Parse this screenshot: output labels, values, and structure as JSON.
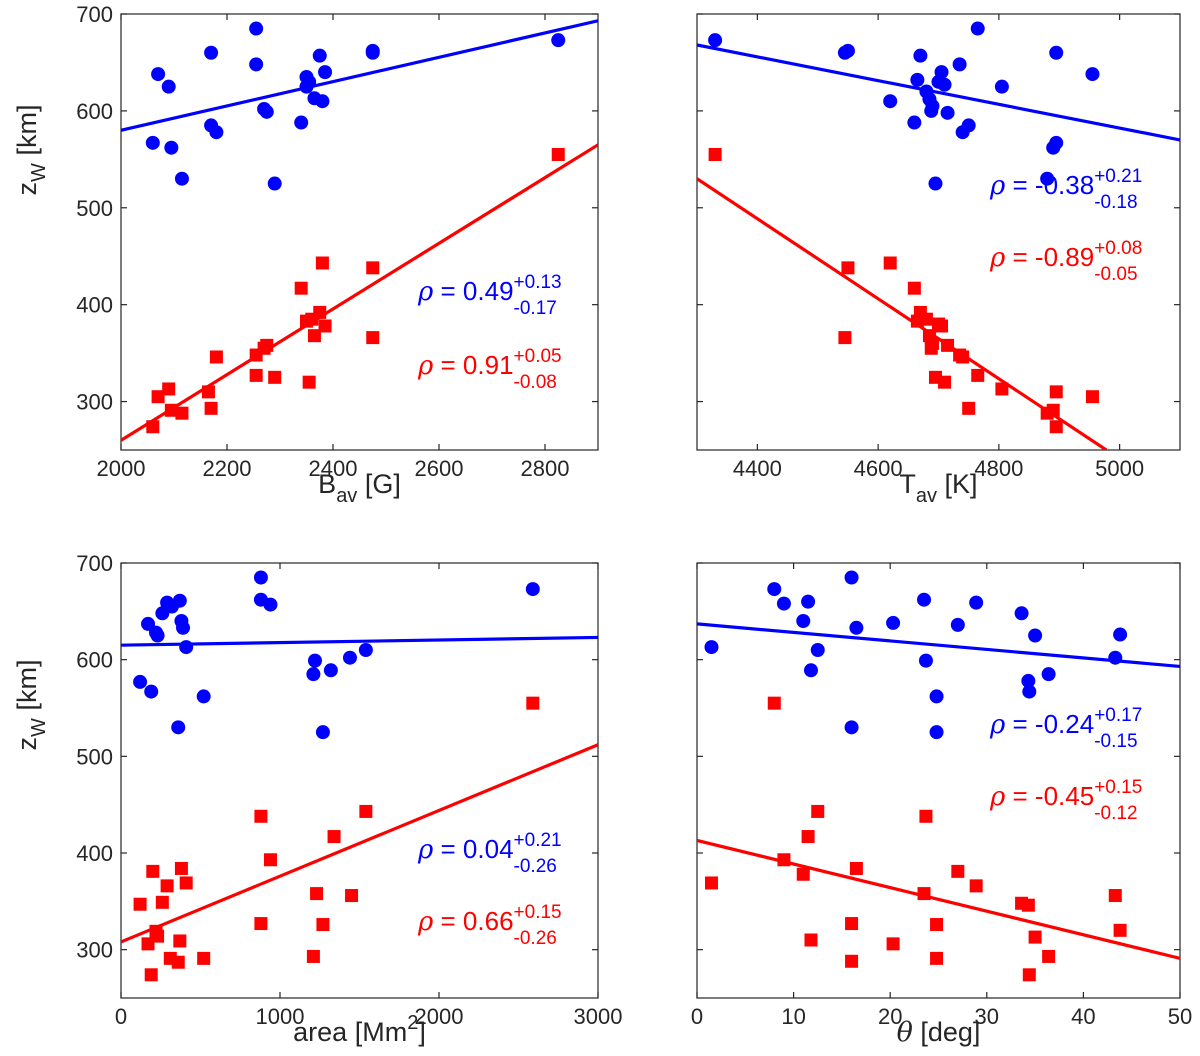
{
  "colors": {
    "blue": "#0000ff",
    "red": "#ff0000",
    "axis": "#262626"
  },
  "chart_data": [
    {
      "type": "scatter",
      "panel": "top-left",
      "xlabel": "B",
      "xlabel_sub": "av",
      "xlabel_unit": " [G]",
      "ylabel": "z",
      "ylabel_sub": "W",
      "ylabel_unit": " [km]",
      "xlim": [
        2000,
        2900
      ],
      "ylim": [
        250,
        700
      ],
      "xticks": [
        2000,
        2200,
        2400,
        2600,
        2800
      ],
      "yticks": [
        300,
        400,
        500,
        600,
        700
      ],
      "show_yticklabels": true,
      "series": [
        {
          "name": "blue",
          "marker": "circle",
          "x": [
            2060,
            2070,
            2090,
            2095,
            2115,
            2170,
            2170,
            2180,
            2255,
            2255,
            2270,
            2275,
            2290,
            2340,
            2350,
            2350,
            2355,
            2365,
            2375,
            2380,
            2385,
            2475,
            2475,
            2825
          ],
          "y": [
            567,
            638,
            625,
            562,
            530,
            660,
            585,
            578,
            685,
            648,
            602,
            599,
            525,
            588,
            635,
            625,
            630,
            613,
            657,
            610,
            640,
            662,
            660,
            673
          ]
        },
        {
          "name": "red",
          "marker": "square",
          "x": [
            2060,
            2070,
            2090,
            2095,
            2115,
            2165,
            2170,
            2180,
            2255,
            2255,
            2270,
            2275,
            2290,
            2340,
            2350,
            2355,
            2360,
            2365,
            2375,
            2380,
            2385,
            2475,
            2475,
            2825
          ],
          "y": [
            274,
            305,
            313,
            291,
            288,
            310,
            293,
            346,
            348,
            327,
            355,
            358,
            325,
            417,
            383,
            320,
            385,
            368,
            392,
            443,
            378,
            438,
            366,
            555
          ]
        }
      ],
      "fits": [
        {
          "name": "blue",
          "x": [
            2000,
            2900
          ],
          "y": [
            580,
            693
          ]
        },
        {
          "name": "red",
          "x": [
            2000,
            2900
          ],
          "y": [
            260,
            565
          ]
        }
      ],
      "annotations": [
        {
          "series": "blue",
          "rho_symbol": "ρ",
          "text": " = 0.49",
          "sup": "+0.13",
          "sub": "-0.17"
        },
        {
          "series": "red",
          "rho_symbol": "ρ",
          "text": " = 0.91",
          "sup": "+0.05",
          "sub": "-0.08"
        }
      ]
    },
    {
      "type": "scatter",
      "panel": "top-right",
      "xlabel": "T",
      "xlabel_sub": "av",
      "xlabel_unit": " [K]",
      "ylabel": "",
      "ylabel_sub": "",
      "ylabel_unit": "",
      "xlim": [
        4300,
        5100
      ],
      "ylim": [
        250,
        700
      ],
      "xticks": [
        4400,
        4600,
        4800,
        5000
      ],
      "yticks": [
        300,
        400,
        500,
        600,
        700
      ],
      "show_yticklabels": false,
      "series": [
        {
          "name": "blue",
          "marker": "circle",
          "x": [
            4330,
            4545,
            4550,
            4620,
            4660,
            4665,
            4670,
            4680,
            4685,
            4688,
            4690,
            4695,
            4700,
            4705,
            4710,
            4715,
            4735,
            4740,
            4750,
            4765,
            4805,
            4880,
            4890,
            4895,
            4895,
            4955
          ],
          "y": [
            673,
            660,
            662,
            610,
            588,
            632,
            657,
            620,
            612,
            600,
            605,
            525,
            630,
            640,
            627,
            598,
            648,
            578,
            585,
            685,
            625,
            530,
            562,
            567,
            660,
            638
          ]
        },
        {
          "name": "red",
          "marker": "square",
          "x": [
            4330,
            4545,
            4550,
            4620,
            4660,
            4665,
            4670,
            4680,
            4685,
            4688,
            4690,
            4695,
            4700,
            4705,
            4710,
            4715,
            4735,
            4740,
            4750,
            4765,
            4805,
            4880,
            4890,
            4895,
            4895,
            4955
          ],
          "y": [
            555,
            366,
            438,
            443,
            417,
            383,
            392,
            385,
            368,
            355,
            360,
            325,
            380,
            378,
            320,
            358,
            348,
            346,
            293,
            327,
            313,
            288,
            291,
            274,
            310,
            305
          ]
        }
      ],
      "fits": [
        {
          "name": "blue",
          "x": [
            4300,
            5100
          ],
          "y": [
            668,
            570
          ]
        },
        {
          "name": "red",
          "x": [
            4300,
            4978
          ],
          "y": [
            530,
            250
          ]
        }
      ],
      "annotations": [
        {
          "series": "blue",
          "rho_symbol": "ρ",
          "text": " = -0.38",
          "sup": "+0.21",
          "sub": "-0.18"
        },
        {
          "series": "red",
          "rho_symbol": "ρ",
          "text": " = -0.89",
          "sup": "+0.08",
          "sub": "-0.05"
        }
      ]
    },
    {
      "type": "scatter",
      "panel": "bottom-left",
      "xlabel": "area [Mm",
      "xlabel_sup": "2",
      "xlabel_unit": "]",
      "ylabel": "z",
      "ylabel_sub": "W",
      "ylabel_unit": " [km]",
      "xlim": [
        0,
        3000
      ],
      "ylim": [
        250,
        700
      ],
      "xticks": [
        0,
        1000,
        2000,
        3000
      ],
      "yticks": [
        300,
        400,
        500,
        600,
        700
      ],
      "show_yticklabels": true,
      "series": [
        {
          "name": "blue",
          "marker": "circle",
          "x": [
            120,
            170,
            190,
            220,
            230,
            260,
            290,
            320,
            360,
            370,
            380,
            390,
            410,
            520,
            880,
            880,
            940,
            1210,
            1220,
            1270,
            1320,
            1440,
            1540,
            2590
          ],
          "y": [
            577,
            637,
            567,
            628,
            625,
            648,
            659,
            655,
            530,
            661,
            640,
            633,
            613,
            562,
            685,
            662,
            657,
            585,
            599,
            525,
            589,
            602,
            610,
            673
          ]
        },
        {
          "name": "red",
          "marker": "square",
          "x": [
            120,
            170,
            190,
            200,
            220,
            230,
            260,
            290,
            310,
            360,
            370,
            380,
            410,
            520,
            880,
            880,
            940,
            1210,
            1230,
            1270,
            1340,
            1450,
            1540,
            2590
          ],
          "y": [
            347,
            306,
            274,
            381,
            319,
            314,
            349,
            366,
            291,
            287,
            309,
            384,
            369,
            291,
            438,
            327,
            393,
            293,
            358,
            326,
            417,
            356,
            443,
            555
          ]
        }
      ],
      "fits": [
        {
          "name": "blue",
          "x": [
            0,
            3000
          ],
          "y": [
            615,
            623
          ]
        },
        {
          "name": "red",
          "x": [
            0,
            3000
          ],
          "y": [
            308,
            512
          ]
        }
      ],
      "annotations": [
        {
          "series": "blue",
          "rho_symbol": "ρ",
          "text": " = 0.04",
          "sup": "+0.21",
          "sub": "-0.26"
        },
        {
          "series": "red",
          "rho_symbol": "ρ",
          "text": " = 0.66",
          "sup": "+0.15",
          "sub": "-0.26"
        }
      ]
    },
    {
      "type": "scatter",
      "panel": "bottom-right",
      "xlabel": "θ",
      "xlabel_unit": " [deg]",
      "xlabel_italic": true,
      "ylabel": "",
      "ylabel_sub": "",
      "ylabel_unit": "",
      "xlim": [
        0,
        50
      ],
      "ylim": [
        250,
        700
      ],
      "xticks": [
        0,
        10,
        20,
        30,
        40,
        50
      ],
      "yticks": [
        300,
        400,
        500,
        600,
        700
      ],
      "show_yticklabels": false,
      "series": [
        {
          "name": "blue",
          "marker": "circle",
          "x": [
            1.5,
            8,
            9,
            11,
            11.5,
            11.8,
            12.5,
            16,
            16,
            16.5,
            20.3,
            23.5,
            23.7,
            24.8,
            24.8,
            27,
            28.9,
            33.6,
            34.3,
            34.4,
            35,
            36.4,
            43.3,
            43.8
          ],
          "y": [
            613,
            673,
            658,
            640,
            660,
            589,
            610,
            685,
            530,
            633,
            638,
            662,
            599,
            562,
            525,
            636,
            659,
            648,
            578,
            567,
            625,
            585,
            602,
            626
          ]
        },
        {
          "name": "red",
          "marker": "square",
          "x": [
            1.5,
            8,
            9,
            11,
            11.5,
            11.8,
            12.5,
            16,
            16,
            16.5,
            20.3,
            23.5,
            23.7,
            24.8,
            24.8,
            27,
            28.9,
            33.6,
            34.3,
            34.4,
            35,
            36.4,
            43.3,
            43.8
          ],
          "y": [
            369,
            555,
            393,
            378,
            417,
            310,
            443,
            327,
            288,
            384,
            306,
            358,
            438,
            326,
            291,
            381,
            366,
            348,
            346,
            274,
            313,
            293,
            356,
            320
          ]
        }
      ],
      "fits": [
        {
          "name": "blue",
          "x": [
            0,
            50
          ],
          "y": [
            637,
            593
          ]
        },
        {
          "name": "red",
          "x": [
            0,
            50
          ],
          "y": [
            413,
            291
          ]
        }
      ],
      "annotations": [
        {
          "series": "blue",
          "rho_symbol": "ρ",
          "text": " = -0.24",
          "sup": "+0.17",
          "sub": "-0.15"
        },
        {
          "series": "red",
          "rho_symbol": "ρ",
          "text": " = -0.45",
          "sup": "+0.15",
          "sub": "-0.12"
        }
      ]
    }
  ]
}
